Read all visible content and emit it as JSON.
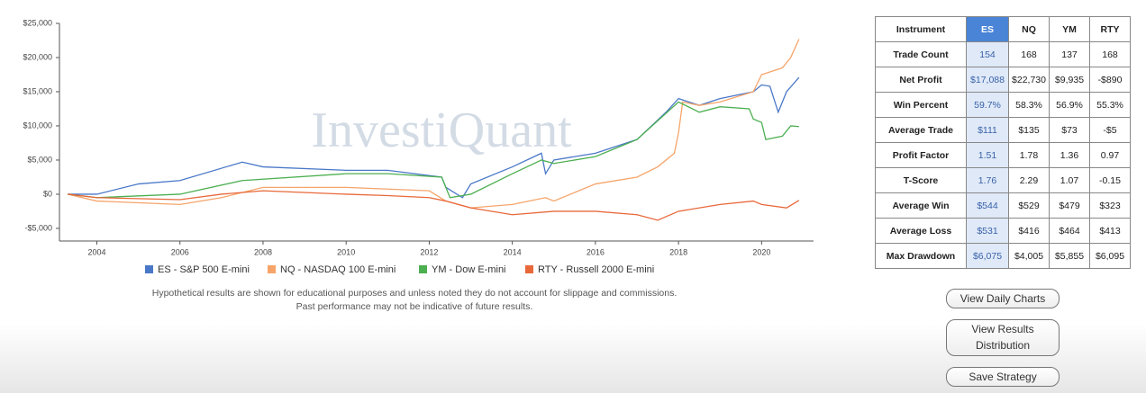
{
  "chart_data": {
    "type": "line",
    "watermark": "InvestiQuant",
    "xlim": [
      2003.1,
      2021.25
    ],
    "xticks": [
      2004,
      2006,
      2008,
      2010,
      2012,
      2014,
      2016,
      2018,
      2020
    ],
    "ylim": [
      -6850,
      25000
    ],
    "yticks": [
      {
        "value": -5000,
        "label": "-$5,000"
      },
      {
        "value": 0,
        "label": "$0"
      },
      {
        "value": 5000,
        "label": "$5,000"
      },
      {
        "value": 10000,
        "label": "$10,000"
      },
      {
        "value": 15000,
        "label": "$15,000"
      },
      {
        "value": 20000,
        "label": "$20,000"
      },
      {
        "value": 25000,
        "label": "$25,000"
      }
    ],
    "series": [
      {
        "name": "ES - S&P 500 E-mini",
        "color": "#4a78c8",
        "x": [
          2003.3,
          2004,
          2005,
          2006,
          2007.5,
          2008,
          2010,
          2011,
          2012.3,
          2012.4,
          2012.8,
          2013,
          2014,
          2014.7,
          2014.8,
          2015,
          2016,
          2017,
          2017.7,
          2018,
          2018.5,
          2019,
          2019.8,
          2020,
          2020.2,
          2020.4,
          2020.6,
          2020.9
        ],
        "values": [
          0,
          0,
          1500,
          2000,
          4700,
          4000,
          3500,
          3500,
          2500,
          1000,
          -500,
          1500,
          4000,
          6000,
          3000,
          5000,
          6000,
          8000,
          12000,
          14000,
          13000,
          14000,
          15000,
          16000,
          15800,
          12000,
          15000,
          17100
        ]
      },
      {
        "name": "NQ - NASDAQ 100 E-mini",
        "color": "#f6a46a",
        "x": [
          2003.3,
          2004,
          2006,
          2007,
          2008,
          2010,
          2012,
          2012.4,
          2013,
          2014,
          2014.8,
          2015,
          2016,
          2017,
          2017.5,
          2017.9,
          2018,
          2018.1,
          2018.5,
          2019,
          2019.8,
          2020,
          2020.5,
          2020.7,
          2020.9
        ],
        "values": [
          0,
          -1000,
          -1500,
          -500,
          1000,
          1000,
          500,
          -1000,
          -2000,
          -1500,
          -500,
          -1000,
          1500,
          2500,
          4000,
          6000,
          9000,
          13500,
          13000,
          13500,
          15000,
          17500,
          18500,
          20000,
          22700
        ]
      },
      {
        "name": "YM - Dow E-mini",
        "color": "#4caf50",
        "x": [
          2003.3,
          2004,
          2006,
          2007.5,
          2010,
          2011,
          2012.3,
          2012.5,
          2013,
          2014,
          2014.7,
          2015,
          2016,
          2017,
          2018,
          2018.5,
          2019,
          2019.7,
          2019.8,
          2020,
          2020.1,
          2020.5,
          2020.7,
          2020.9
        ],
        "values": [
          0,
          -500,
          0,
          2000,
          3000,
          3000,
          2500,
          -500,
          0,
          3000,
          5000,
          4500,
          5500,
          8000,
          13500,
          12000,
          12800,
          12500,
          11000,
          10500,
          8000,
          8500,
          10000,
          9900
        ]
      },
      {
        "name": "RTY - Russell 2000 E-mini",
        "color": "#e8683a",
        "x": [
          2003.3,
          2004,
          2006,
          2007,
          2008,
          2010,
          2011,
          2012,
          2012.4,
          2013,
          2014,
          2015,
          2016,
          2017,
          2017.5,
          2018,
          2019,
          2019.8,
          2020,
          2020.6,
          2020.9
        ],
        "values": [
          0,
          -500,
          -800,
          0,
          500,
          0,
          -200,
          -500,
          -1000,
          -2000,
          -3000,
          -2500,
          -2500,
          -3000,
          -3800,
          -2500,
          -1500,
          -1000,
          -1500,
          -2000,
          -900
        ]
      }
    ]
  },
  "disclaimer": [
    "Hypothetical results are shown for educational purposes and unless noted they do not account for slippage and commissions.",
    "Past performance may not be indicative of future results."
  ],
  "table": {
    "header": [
      "Instrument",
      "ES",
      "NQ",
      "YM",
      "RTY"
    ],
    "rows": [
      [
        "Trade Count",
        "154",
        "168",
        "137",
        "168"
      ],
      [
        "Net Profit",
        "$17,088",
        "$22,730",
        "$9,935",
        "-$890"
      ],
      [
        "Win Percent",
        "59.7%",
        "58.3%",
        "56.9%",
        "55.3%"
      ],
      [
        "Average Trade",
        "$111",
        "$135",
        "$73",
        "-$5"
      ],
      [
        "Profit Factor",
        "1.51",
        "1.78",
        "1.36",
        "0.97"
      ],
      [
        "T-Score",
        "1.76",
        "2.29",
        "1.07",
        "-0.15"
      ],
      [
        "Average Win",
        "$544",
        "$529",
        "$479",
        "$323"
      ],
      [
        "Average Loss",
        "$531",
        "$416",
        "$464",
        "$413"
      ],
      [
        "Max Drawdown",
        "$6,075",
        "$4,005",
        "$5,855",
        "$6,095"
      ]
    ]
  },
  "buttons": [
    "View Daily Charts",
    "View Results Distribution",
    "Save Strategy"
  ]
}
